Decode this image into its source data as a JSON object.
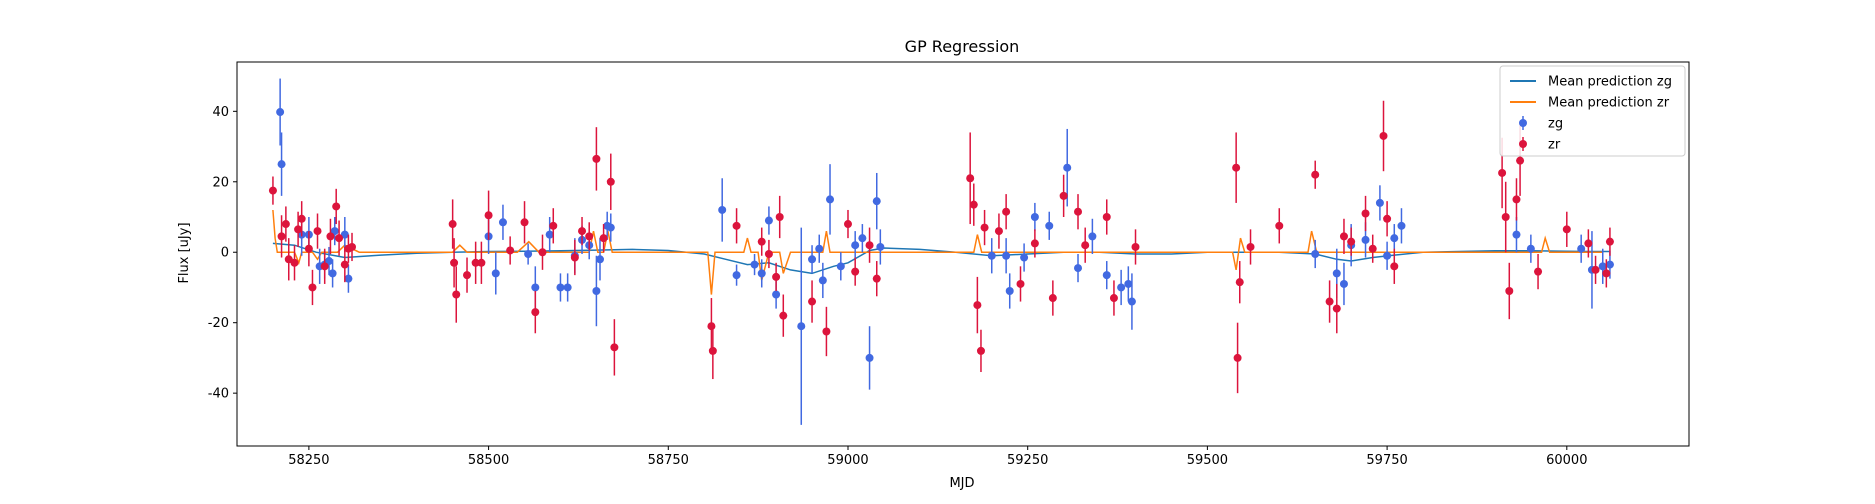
{
  "chart_data": {
    "type": "scatter",
    "title": "GP Regression",
    "xlabel": "MJD",
    "ylabel": "Flux [uJy]",
    "xlim": [
      58150,
      60170
    ],
    "ylim": [
      -55,
      54
    ],
    "xticks": [
      58250,
      58500,
      58750,
      59000,
      59250,
      59500,
      59750,
      60000
    ],
    "yticks": [
      -40,
      -20,
      0,
      20,
      40
    ],
    "grid": false,
    "legend_position": "top-right",
    "colors": {
      "zg_points": "#4169e1",
      "zr_points": "#dc143c",
      "zg_line": "#1f77b4",
      "zr_line": "#ff7f0e"
    },
    "lines": [
      {
        "name": "Mean prediction zg",
        "x": [
          58200,
          58230,
          58260,
          58300,
          58350,
          58400,
          58450,
          58500,
          58550,
          58600,
          58650,
          58700,
          58750,
          58800,
          58830,
          58860,
          58890,
          58920,
          58950,
          58980,
          59000,
          59030,
          59050,
          59100,
          59150,
          59200,
          59250,
          59300,
          59350,
          59400,
          59450,
          59500,
          59550,
          59600,
          59650,
          59680,
          59700,
          59730,
          59760,
          59800,
          59850,
          59900,
          59950,
          60000,
          60030,
          60060
        ],
        "y": [
          2.5,
          2,
          0,
          -1.5,
          -0.8,
          -0.3,
          0,
          0.2,
          0.3,
          0.4,
          0.6,
          0.8,
          0.5,
          -0.5,
          -2,
          -3.5,
          -3,
          -5,
          -6,
          -4,
          -3,
          0.5,
          1.2,
          0.8,
          0,
          -1,
          -0.5,
          0,
          0,
          -0.5,
          -0.5,
          0,
          0,
          0,
          -0.5,
          -2,
          -2.5,
          -1.5,
          -0.8,
          0,
          0.2,
          0.4,
          0.4,
          0.3,
          0.2,
          0.2
        ]
      },
      {
        "name": "Mean prediction zr",
        "x": [
          58200,
          58203,
          58206,
          58212,
          58230,
          58236,
          58240,
          58255,
          58262,
          58268,
          58290,
          58300,
          58320,
          58400,
          58450,
          58460,
          58470,
          58500,
          58540,
          58556,
          58570,
          58640,
          58646,
          58652,
          58660,
          58666,
          58672,
          58700,
          58805,
          58810,
          58815,
          58830,
          58855,
          58860,
          58865,
          58875,
          58880,
          58890,
          58905,
          58910,
          58920,
          58950,
          58965,
          58970,
          58975,
          59000,
          59100,
          59175,
          59180,
          59186,
          59200,
          59250,
          59300,
          59350,
          59400,
          59500,
          59535,
          59540,
          59546,
          59552,
          59600,
          59640,
          59645,
          59652,
          59700,
          59750,
          59800,
          59900,
          59950,
          59965,
          59970,
          59976,
          60000,
          60050
        ],
        "y": [
          12,
          4,
          0,
          0,
          0,
          -3,
          0,
          0,
          -2,
          0,
          0,
          2,
          0,
          0,
          0,
          2,
          0,
          0,
          0,
          3,
          0,
          0,
          6,
          0,
          0,
          6,
          0,
          0,
          0,
          -12,
          0,
          0,
          0,
          4,
          0,
          0,
          -8,
          0,
          0,
          -6,
          0,
          0,
          0,
          6,
          0,
          0,
          0,
          0,
          5,
          0,
          0,
          0,
          0,
          0,
          0,
          0,
          0,
          -5,
          4,
          0,
          0,
          0,
          6,
          0,
          0,
          0,
          0,
          0,
          0,
          0,
          4,
          0,
          0,
          0
        ]
      }
    ],
    "series": [
      {
        "name": "zg",
        "points": [
          [
            58210,
            39.8,
            9.5
          ],
          [
            58212,
            25,
            9
          ],
          [
            58240,
            5,
            6
          ],
          [
            58250,
            5,
            5
          ],
          [
            58265,
            -4,
            5
          ],
          [
            58272,
            -3.5,
            4
          ],
          [
            58278,
            -2.5,
            4
          ],
          [
            58283,
            -6,
            4
          ],
          [
            58286,
            6,
            4
          ],
          [
            58300,
            5,
            5
          ],
          [
            58305,
            -7.5,
            4
          ],
          [
            58500,
            4.5,
            5
          ],
          [
            58510,
            -6,
            6
          ],
          [
            58520,
            8.5,
            5
          ],
          [
            58555,
            -0.5,
            3
          ],
          [
            58565,
            -10,
            6
          ],
          [
            58585,
            5,
            5
          ],
          [
            58600,
            -10,
            4
          ],
          [
            58610,
            -10,
            4
          ],
          [
            58620,
            -1,
            5
          ],
          [
            58630,
            3.5,
            4
          ],
          [
            58640,
            2,
            4
          ],
          [
            58650,
            -11,
            10
          ],
          [
            58655,
            -2,
            6
          ],
          [
            58665,
            7.5,
            4
          ],
          [
            58670,
            7,
            4
          ],
          [
            58825,
            12,
            9
          ],
          [
            58845,
            -6.5,
            3
          ],
          [
            58870,
            -3.5,
            3
          ],
          [
            58880,
            -6,
            4
          ],
          [
            58890,
            9,
            4
          ],
          [
            58900,
            -12,
            4
          ],
          [
            58935,
            -21,
            28
          ],
          [
            58950,
            -2,
            4
          ],
          [
            58960,
            1,
            4
          ],
          [
            58965,
            -8,
            5
          ],
          [
            58975,
            15,
            10
          ],
          [
            58990,
            -4,
            4
          ],
          [
            59010,
            2,
            4
          ],
          [
            59020,
            4,
            4
          ],
          [
            59030,
            -30,
            9
          ],
          [
            59040,
            14.5,
            8
          ],
          [
            59045,
            1.5,
            5
          ],
          [
            59200,
            -1,
            5
          ],
          [
            59220,
            -1,
            5
          ],
          [
            59225,
            -11,
            5
          ],
          [
            59245,
            -1.5,
            4
          ],
          [
            59260,
            10,
            4
          ],
          [
            59280,
            7.5,
            4
          ],
          [
            59305,
            24,
            11
          ],
          [
            59320,
            -4.5,
            4
          ],
          [
            59340,
            4.5,
            5
          ],
          [
            59360,
            -6.5,
            4
          ],
          [
            59380,
            -10,
            5
          ],
          [
            59390,
            -9,
            5
          ],
          [
            59395,
            -14,
            8
          ],
          [
            59650,
            -0.5,
            4
          ],
          [
            59680,
            -6,
            7
          ],
          [
            59690,
            -9,
            6
          ],
          [
            59700,
            2,
            6
          ],
          [
            59720,
            3.5,
            5
          ],
          [
            59740,
            14,
            5
          ],
          [
            59750,
            -1,
            4
          ],
          [
            59760,
            4,
            4
          ],
          [
            59770,
            7.5,
            5
          ],
          [
            59930,
            5,
            5
          ],
          [
            59950,
            1,
            4
          ],
          [
            60020,
            1,
            4
          ],
          [
            60035,
            -5,
            11
          ],
          [
            60050,
            -4,
            5
          ],
          [
            60060,
            -3.5,
            4
          ]
        ]
      },
      {
        "name": "zr",
        "points": [
          [
            58200,
            17.5,
            4
          ],
          [
            58212,
            4.5,
            6
          ],
          [
            58218,
            8,
            5
          ],
          [
            58222,
            -2,
            6
          ],
          [
            58230,
            -3,
            5
          ],
          [
            58235,
            6.5,
            5
          ],
          [
            58240,
            9.5,
            5
          ],
          [
            58250,
            1,
            5
          ],
          [
            58255,
            -10,
            5
          ],
          [
            58262,
            6,
            5
          ],
          [
            58272,
            -4,
            5
          ],
          [
            58280,
            4.5,
            5
          ],
          [
            58288,
            13,
            5
          ],
          [
            58292,
            4,
            5
          ],
          [
            58300,
            -3.5,
            5
          ],
          [
            58305,
            1,
            4
          ],
          [
            58310,
            1.5,
            4
          ],
          [
            58450,
            8,
            7
          ],
          [
            58452,
            -3,
            7
          ],
          [
            58455,
            -12,
            8
          ],
          [
            58470,
            -6.5,
            5
          ],
          [
            58482,
            -3,
            6
          ],
          [
            58490,
            -3,
            6
          ],
          [
            58500,
            10.5,
            7
          ],
          [
            58530,
            0.5,
            4
          ],
          [
            58550,
            8.5,
            6
          ],
          [
            58565,
            -17,
            6
          ],
          [
            58575,
            0,
            5
          ],
          [
            58590,
            7.5,
            5
          ],
          [
            58620,
            -1.5,
            5
          ],
          [
            58630,
            6,
            4
          ],
          [
            58640,
            4.5,
            4
          ],
          [
            58650,
            26.5,
            9
          ],
          [
            58660,
            4,
            4
          ],
          [
            58670,
            20,
            8
          ],
          [
            58675,
            -27,
            8
          ],
          [
            58810,
            -21,
            8
          ],
          [
            58812,
            -28,
            8
          ],
          [
            58845,
            7.5,
            5
          ],
          [
            58880,
            3,
            4
          ],
          [
            58890,
            -0.5,
            4
          ],
          [
            58900,
            -7,
            4
          ],
          [
            58905,
            10,
            6
          ],
          [
            58910,
            -18,
            6
          ],
          [
            58950,
            -14,
            6
          ],
          [
            58970,
            -22.5,
            7
          ],
          [
            59000,
            8,
            4
          ],
          [
            59010,
            -5.5,
            4
          ],
          [
            59030,
            2,
            5
          ],
          [
            59040,
            -7.5,
            5
          ],
          [
            59170,
            21,
            13
          ],
          [
            59175,
            13.5,
            6
          ],
          [
            59180,
            -15,
            8
          ],
          [
            59185,
            -28,
            6
          ],
          [
            59190,
            7,
            5
          ],
          [
            59210,
            6,
            5
          ],
          [
            59220,
            11.5,
            5
          ],
          [
            59240,
            -9,
            5
          ],
          [
            59260,
            2.5,
            4
          ],
          [
            59285,
            -13,
            5
          ],
          [
            59300,
            16,
            6
          ],
          [
            59320,
            11.5,
            5
          ],
          [
            59330,
            2,
            5
          ],
          [
            59360,
            10,
            5
          ],
          [
            59370,
            -13,
            5
          ],
          [
            59400,
            1.5,
            5
          ],
          [
            59540,
            24,
            10
          ],
          [
            59542,
            -30,
            10
          ],
          [
            59545,
            -8.5,
            6
          ],
          [
            59560,
            1.5,
            5
          ],
          [
            59600,
            7.5,
            5
          ],
          [
            59650,
            22,
            4
          ],
          [
            59670,
            -14,
            6
          ],
          [
            59680,
            -16,
            7
          ],
          [
            59690,
            4.5,
            5
          ],
          [
            59700,
            3,
            4
          ],
          [
            59720,
            11,
            5
          ],
          [
            59730,
            1,
            4
          ],
          [
            59745,
            33,
            10
          ],
          [
            59750,
            9.5,
            5
          ],
          [
            59760,
            -4,
            5
          ],
          [
            59910,
            22.5,
            10
          ],
          [
            59915,
            10,
            10
          ],
          [
            59920,
            -11,
            8
          ],
          [
            59930,
            15,
            6
          ],
          [
            59935,
            26,
            10
          ],
          [
            59960,
            -5.5,
            5
          ],
          [
            60000,
            6.5,
            5
          ],
          [
            60030,
            2.5,
            4
          ],
          [
            60040,
            -5,
            4
          ],
          [
            60055,
            -6,
            4
          ],
          [
            60060,
            3,
            4
          ]
        ]
      }
    ],
    "legend": [
      {
        "label": "Mean prediction zg",
        "kind": "line",
        "color": "#1f77b4"
      },
      {
        "label": "Mean prediction zr",
        "kind": "line",
        "color": "#ff7f0e"
      },
      {
        "label": "zg",
        "kind": "errorbar",
        "color": "#4169e1"
      },
      {
        "label": "zr",
        "kind": "errorbar",
        "color": "#dc143c"
      }
    ]
  }
}
